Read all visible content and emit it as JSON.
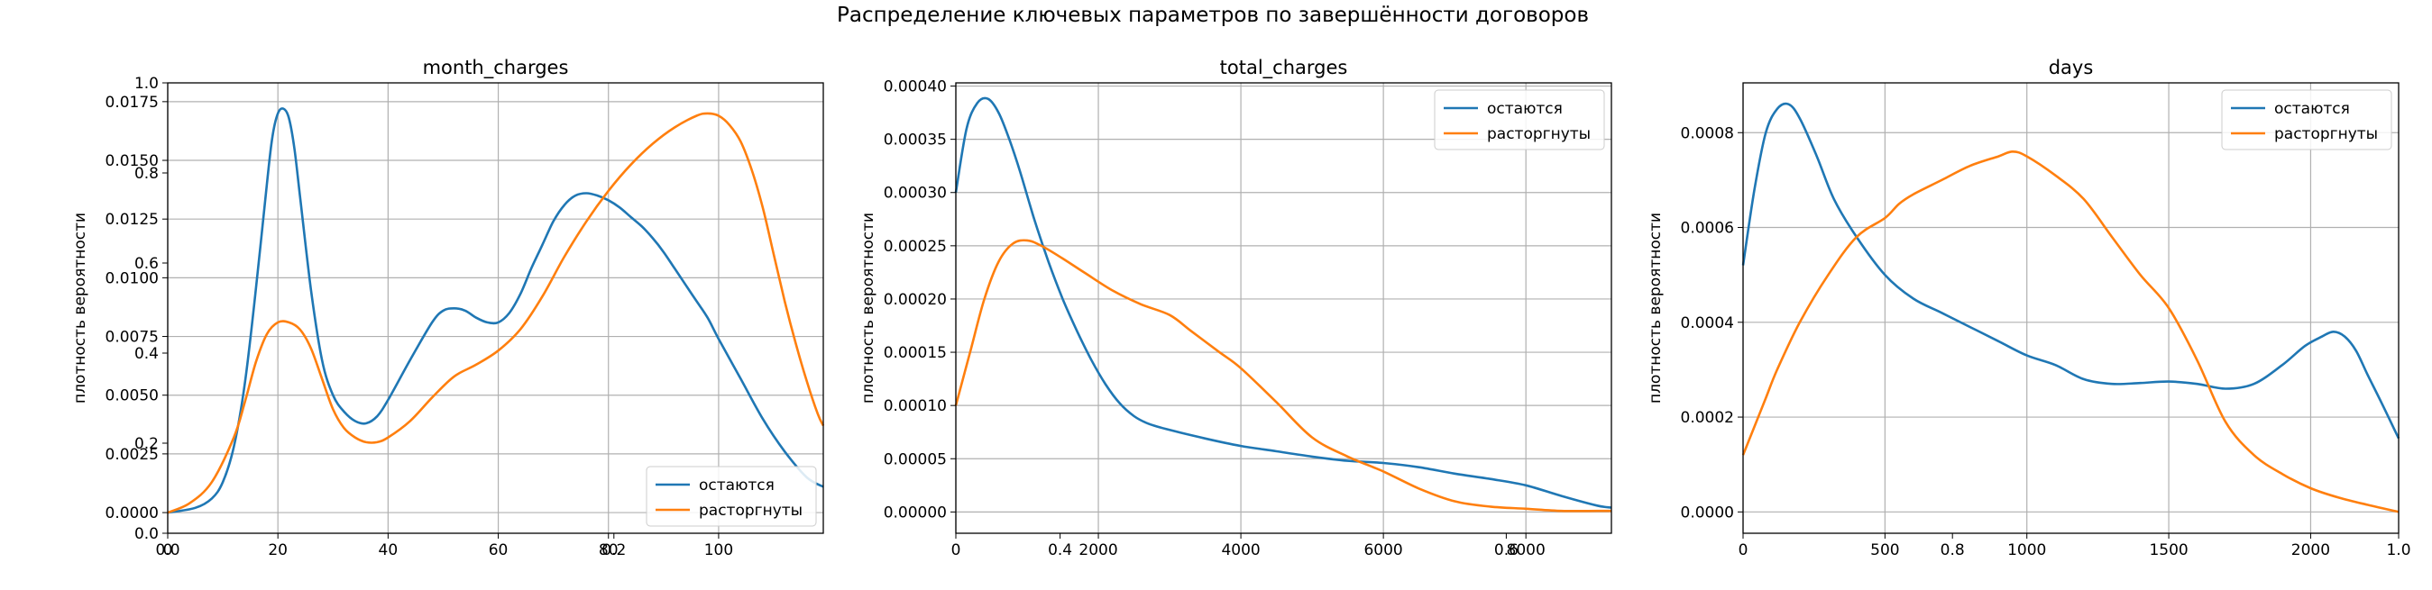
{
  "figure": {
    "suptitle": "Распределение ключевых параметров по завершённости договоров"
  },
  "background_axes": {
    "x_ticks": [
      "0.0",
      "0.2",
      "0.4",
      "0.6",
      "0.8",
      "1.0"
    ],
    "y_ticks": [
      "0.0",
      "0.2",
      "0.4",
      "0.6",
      "0.8",
      "1.0"
    ]
  },
  "colors": {
    "stay": "#1f77b4",
    "churn": "#ff7f0e",
    "grid": "#b0b0b0"
  },
  "chart_data": [
    {
      "type": "line",
      "title": "month_charges",
      "xlabel": "",
      "ylabel": "плотность вероятности",
      "xlim": [
        0,
        119
      ],
      "ylim": [
        -0.00088,
        0.0183
      ],
      "x_ticks": [
        0,
        20,
        40,
        60,
        80,
        100
      ],
      "y_ticks": [
        "0.0000",
        "0.0025",
        "0.0050",
        "0.0075",
        "0.0100",
        "0.0125",
        "0.0150",
        "0.0175"
      ],
      "legend_position": "lower right",
      "grid": true,
      "series": [
        {
          "name": "остаются",
          "color": "#1f77b4",
          "x": [
            0,
            5,
            8,
            10,
            12,
            14,
            16,
            18,
            19,
            20,
            21,
            22,
            23,
            24,
            26,
            28,
            30,
            32,
            34,
            36,
            38,
            40,
            44,
            48,
            50,
            52,
            54,
            56,
            58,
            60,
            62,
            64,
            66,
            68,
            70,
            72,
            74,
            76,
            78,
            80,
            82,
            84,
            86,
            88,
            90,
            92,
            94,
            96,
            98,
            100,
            104,
            108,
            112,
            116,
            119
          ],
          "y": [
            0.0,
            0.0002,
            0.0006,
            0.0013,
            0.0028,
            0.0055,
            0.0095,
            0.014,
            0.016,
            0.017,
            0.0172,
            0.0168,
            0.0155,
            0.0135,
            0.0095,
            0.0065,
            0.005,
            0.0043,
            0.0039,
            0.0038,
            0.0041,
            0.0048,
            0.0065,
            0.0081,
            0.0086,
            0.0087,
            0.0086,
            0.0083,
            0.0081,
            0.0081,
            0.0085,
            0.0093,
            0.0104,
            0.0114,
            0.0124,
            0.0131,
            0.0135,
            0.0136,
            0.0135,
            0.0133,
            0.013,
            0.0126,
            0.0122,
            0.0117,
            0.0111,
            0.0104,
            0.0097,
            0.009,
            0.0083,
            0.0074,
            0.0057,
            0.004,
            0.0026,
            0.0015,
            0.0011
          ]
        },
        {
          "name": "расторгнуты",
          "color": "#ff7f0e",
          "x": [
            0,
            4,
            8,
            12,
            14,
            16,
            18,
            20,
            22,
            24,
            26,
            28,
            30,
            32,
            34,
            36,
            38,
            40,
            44,
            48,
            52,
            56,
            60,
            64,
            68,
            72,
            76,
            80,
            84,
            88,
            92,
            96,
            98,
            100,
            102,
            104,
            106,
            108,
            110,
            112,
            114,
            116,
            118,
            119
          ],
          "y": [
            0.0,
            0.0004,
            0.0013,
            0.0032,
            0.0047,
            0.0064,
            0.0076,
            0.0081,
            0.0081,
            0.0078,
            0.007,
            0.0057,
            0.0044,
            0.0036,
            0.0032,
            0.003,
            0.003,
            0.0032,
            0.0039,
            0.0049,
            0.0058,
            0.0063,
            0.0069,
            0.0078,
            0.0092,
            0.0109,
            0.0124,
            0.0137,
            0.0148,
            0.0157,
            0.0164,
            0.0169,
            0.017,
            0.0169,
            0.0165,
            0.0158,
            0.0146,
            0.013,
            0.011,
            0.009,
            0.0072,
            0.0056,
            0.0042,
            0.0037
          ]
        }
      ]
    },
    {
      "type": "line",
      "title": "total_charges",
      "xlabel": "",
      "ylabel": "плотность вероятности",
      "xlim": [
        0,
        9200
      ],
      "ylim": [
        -2e-05,
        0.000403
      ],
      "x_ticks": [
        0,
        2000,
        4000,
        6000,
        8000
      ],
      "y_ticks": [
        "0.00000",
        "0.00005",
        "0.00010",
        "0.00015",
        "0.00020",
        "0.00025",
        "0.00030",
        "0.00035",
        "0.00040"
      ],
      "legend_position": "upper right",
      "grid": true,
      "series": [
        {
          "name": "остаются",
          "color": "#1f77b4",
          "x": [
            0,
            150,
            300,
            450,
            600,
            750,
            900,
            1100,
            1300,
            1500,
            1700,
            1900,
            2100,
            2300,
            2500,
            2700,
            3000,
            3500,
            4000,
            4500,
            5000,
            5500,
            6000,
            6500,
            7000,
            7500,
            8000,
            8500,
            9000,
            9200
          ],
          "y": [
            0.0003,
            0.00036,
            0.000384,
            0.000388,
            0.000375,
            0.00035,
            0.00032,
            0.000275,
            0.000235,
            0.0002,
            0.00017,
            0.000143,
            0.00012,
            0.000102,
            9e-05,
            8.3e-05,
            7.7e-05,
            6.9e-05,
            6.2e-05,
            5.7e-05,
            5.2e-05,
            4.8e-05,
            4.6e-05,
            4.2e-05,
            3.6e-05,
            3.1e-05,
            2.5e-05,
            1.5e-05,
            6e-06,
            4e-06
          ]
        },
        {
          "name": "расторгнуты",
          "color": "#ff7f0e",
          "x": [
            0,
            200,
            400,
            600,
            800,
            1000,
            1200,
            1500,
            1800,
            2200,
            2600,
            3000,
            3300,
            3700,
            4000,
            4500,
            5000,
            5500,
            6000,
            6500,
            7000,
            7500,
            8000,
            8500,
            9000,
            9200
          ],
          "y": [
            0.0001,
            0.00015,
            0.0002,
            0.000235,
            0.000252,
            0.000255,
            0.00025,
            0.000238,
            0.000225,
            0.000208,
            0.000195,
            0.000185,
            0.00017,
            0.00015,
            0.000135,
            0.000103,
            7e-05,
            5.2e-05,
            3.8e-05,
            2.2e-05,
            1e-05,
            5e-06,
            3e-06,
            1e-06,
            1e-06,
            1e-06
          ]
        }
      ]
    },
    {
      "type": "line",
      "title": "days",
      "xlabel": "",
      "ylabel": "плотность вероятности",
      "xlim": [
        0,
        2310
      ],
      "ylim": [
        -4.5e-05,
        0.000905
      ],
      "x_ticks": [
        0,
        500,
        1000,
        1500,
        2000
      ],
      "y_ticks": [
        "0.0000",
        "0.0002",
        "0.0004",
        "0.0006",
        "0.0008"
      ],
      "legend_position": "upper right",
      "grid": true,
      "series": [
        {
          "name": "остаются",
          "color": "#1f77b4",
          "x": [
            0,
            40,
            80,
            120,
            160,
            200,
            260,
            320,
            400,
            500,
            600,
            700,
            800,
            900,
            1000,
            1100,
            1200,
            1300,
            1400,
            1500,
            1600,
            1700,
            1800,
            1900,
            1980,
            2040,
            2080,
            2120,
            2160,
            2200,
            2250,
            2310
          ],
          "y": [
            0.00052,
            0.00068,
            0.0008,
            0.00085,
            0.00086,
            0.00083,
            0.00075,
            0.00066,
            0.00058,
            0.0005,
            0.00045,
            0.00042,
            0.00039,
            0.00036,
            0.00033,
            0.00031,
            0.00028,
            0.00027,
            0.000272,
            0.000275,
            0.00027,
            0.00026,
            0.00027,
            0.00031,
            0.00035,
            0.00037,
            0.00038,
            0.00037,
            0.00034,
            0.00029,
            0.00023,
            0.000155
          ]
        },
        {
          "name": "расторгнуты",
          "color": "#ff7f0e",
          "x": [
            0,
            40,
            80,
            120,
            200,
            300,
            400,
            500,
            550,
            600,
            700,
            800,
            900,
            950,
            1000,
            1100,
            1200,
            1300,
            1400,
            1500,
            1600,
            1700,
            1800,
            1900,
            2000,
            2100,
            2200,
            2310
          ],
          "y": [
            0.00012,
            0.00018,
            0.00024,
            0.0003,
            0.0004,
            0.0005,
            0.00058,
            0.00062,
            0.00065,
            0.00067,
            0.0007,
            0.00073,
            0.00075,
            0.00076,
            0.00075,
            0.00071,
            0.00066,
            0.00058,
            0.0005,
            0.00043,
            0.00032,
            0.00019,
            0.00012,
            8e-05,
            5e-05,
            3e-05,
            1.5e-05,
            0.0
          ]
        }
      ]
    }
  ]
}
